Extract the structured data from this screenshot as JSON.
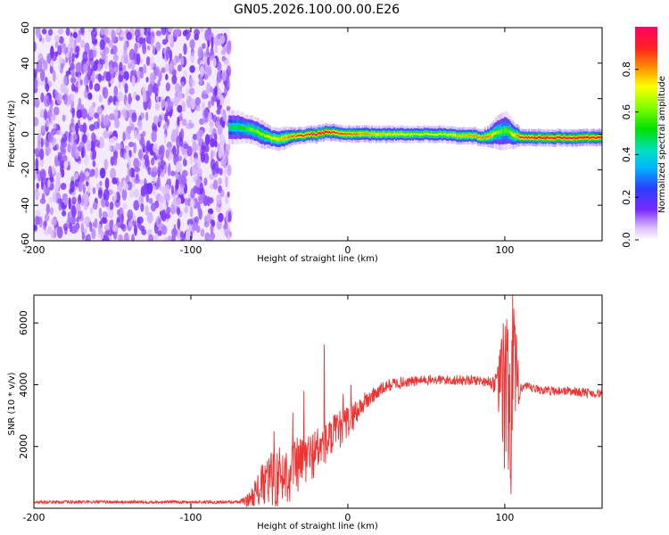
{
  "title": "GN05.2026.100.00.00.E26",
  "colors": {
    "snr_line": "#ee3333",
    "spectro_noise": "#8844ee",
    "frame": "#000000"
  },
  "chart_data": [
    {
      "type": "heatmap",
      "name": "spectrogram",
      "xlabel": "Height of straight line (km)",
      "ylabel": "Frequency (Hz)",
      "xlim": [
        -200,
        162
      ],
      "ylim": [
        -60,
        60
      ],
      "xticks": [
        -200,
        -100,
        0,
        100
      ],
      "xtick_labels": [
        "-200",
        "-100",
        "0",
        "100"
      ],
      "yticks": [
        -60,
        -40,
        -20,
        0,
        20,
        40,
        60
      ],
      "ytick_labels": [
        "-60",
        "-40",
        "-20",
        "0",
        "20",
        "40",
        "60"
      ],
      "noise_region_x": [
        -200,
        -75
      ],
      "ridge": {
        "x": [
          -76,
          -70,
          -65,
          -60,
          -55,
          -50,
          -45,
          -40,
          -35,
          -30,
          -25,
          -20,
          -15,
          -10,
          -5,
          0,
          10,
          20,
          30,
          40,
          50,
          60,
          70,
          80,
          85,
          90,
          95,
          100,
          105,
          110,
          120,
          140,
          162
        ],
        "frequency": [
          4,
          4,
          3,
          2,
          0,
          -2,
          -3,
          -2,
          -1,
          -1,
          0,
          0,
          1,
          1,
          0,
          0,
          0,
          0,
          0,
          0,
          0,
          0,
          -1,
          -1,
          -2,
          -1,
          1,
          2,
          0,
          -2,
          -2,
          -2,
          -2
        ],
        "peak_amplitude": [
          0.45,
          0.5,
          0.55,
          0.6,
          0.65,
          0.7,
          0.75,
          0.8,
          0.85,
          0.9,
          0.9,
          0.95,
          0.95,
          0.9,
          0.85,
          0.85,
          0.8,
          0.75,
          0.75,
          0.7,
          0.7,
          0.7,
          0.75,
          0.8,
          0.85,
          0.8,
          0.6,
          0.55,
          0.7,
          0.9,
          0.95,
          0.95,
          0.95
        ],
        "width_hz": [
          6,
          6,
          5,
          5,
          5,
          4,
          4,
          4,
          3,
          3,
          3,
          3,
          3,
          3,
          3,
          3,
          3,
          3,
          3,
          3,
          3,
          3,
          3,
          3,
          3,
          4,
          6,
          7,
          5,
          3,
          3,
          3,
          3
        ]
      },
      "colorbar": {
        "label": "Normalized spectral amplitude",
        "range": [
          0,
          1
        ],
        "ticks": [
          0.0,
          0.2,
          0.4,
          0.6,
          0.8
        ],
        "tick_labels": [
          "0.0",
          "0.2",
          "0.4",
          "0.6",
          "0.8"
        ]
      }
    },
    {
      "type": "line",
      "name": "snr",
      "xlabel": "Height of straight line (km)",
      "ylabel": "SNR (10 * v/v)",
      "xlim": [
        -200,
        162
      ],
      "ylim": [
        0,
        6900
      ],
      "xticks": [
        -200,
        -100,
        0,
        100
      ],
      "xtick_labels": [
        "-200",
        "-100",
        "0",
        "100"
      ],
      "yticks": [
        2000,
        4000,
        6000
      ],
      "ytick_labels": [
        "2000",
        "4000",
        "6000"
      ],
      "envelope": {
        "x": [
          -200,
          -180,
          -160,
          -140,
          -120,
          -100,
          -80,
          -70,
          -64,
          -60,
          -55,
          -50,
          -45,
          -40,
          -35,
          -30,
          -25,
          -20,
          -15,
          -10,
          -5,
          0,
          5,
          10,
          15,
          20,
          25,
          30,
          40,
          50,
          60,
          70,
          80,
          90,
          95,
          98,
          100,
          102,
          104,
          106,
          108,
          110,
          115,
          120,
          130,
          140,
          150,
          162
        ],
        "y": [
          200,
          200,
          200,
          200,
          200,
          200,
          200,
          200,
          250,
          450,
          700,
          900,
          1000,
          1100,
          1250,
          1450,
          1650,
          1850,
          2050,
          2300,
          2550,
          2800,
          3100,
          3400,
          3600,
          3800,
          3950,
          4050,
          4100,
          4150,
          4150,
          4150,
          4150,
          4100,
          4000,
          3800,
          3600,
          3400,
          3500,
          3800,
          3900,
          3950,
          3900,
          3850,
          3800,
          3800,
          3750,
          3700
        ]
      },
      "noise_fraction": [
        0.25,
        0.25,
        0.25,
        0.25,
        0.25,
        0.25,
        0.25,
        0.25,
        0.8,
        0.9,
        1.0,
        1.0,
        1.0,
        0.9,
        0.8,
        0.6,
        0.5,
        0.45,
        0.35,
        0.3,
        0.25,
        0.2,
        0.15,
        0.1,
        0.08,
        0.06,
        0.05,
        0.05,
        0.04,
        0.04,
        0.04,
        0.04,
        0.04,
        0.04,
        0.1,
        0.5,
        0.8,
        0.9,
        1.0,
        0.8,
        0.3,
        0.05,
        0.04,
        0.04,
        0.04,
        0.04,
        0.04,
        0.04
      ],
      "spikes": [
        {
          "x": -47,
          "y": 2500
        },
        {
          "x": -35,
          "y": 3100
        },
        {
          "x": -28,
          "y": 3800
        },
        {
          "x": -15,
          "y": 5300
        },
        {
          "x": -3,
          "y": 3700
        },
        {
          "x": 2,
          "y": 4000
        },
        {
          "x": 99,
          "y": 6000
        },
        {
          "x": 102,
          "y": 5800
        },
        {
          "x": 105,
          "y": 6900
        }
      ]
    }
  ]
}
